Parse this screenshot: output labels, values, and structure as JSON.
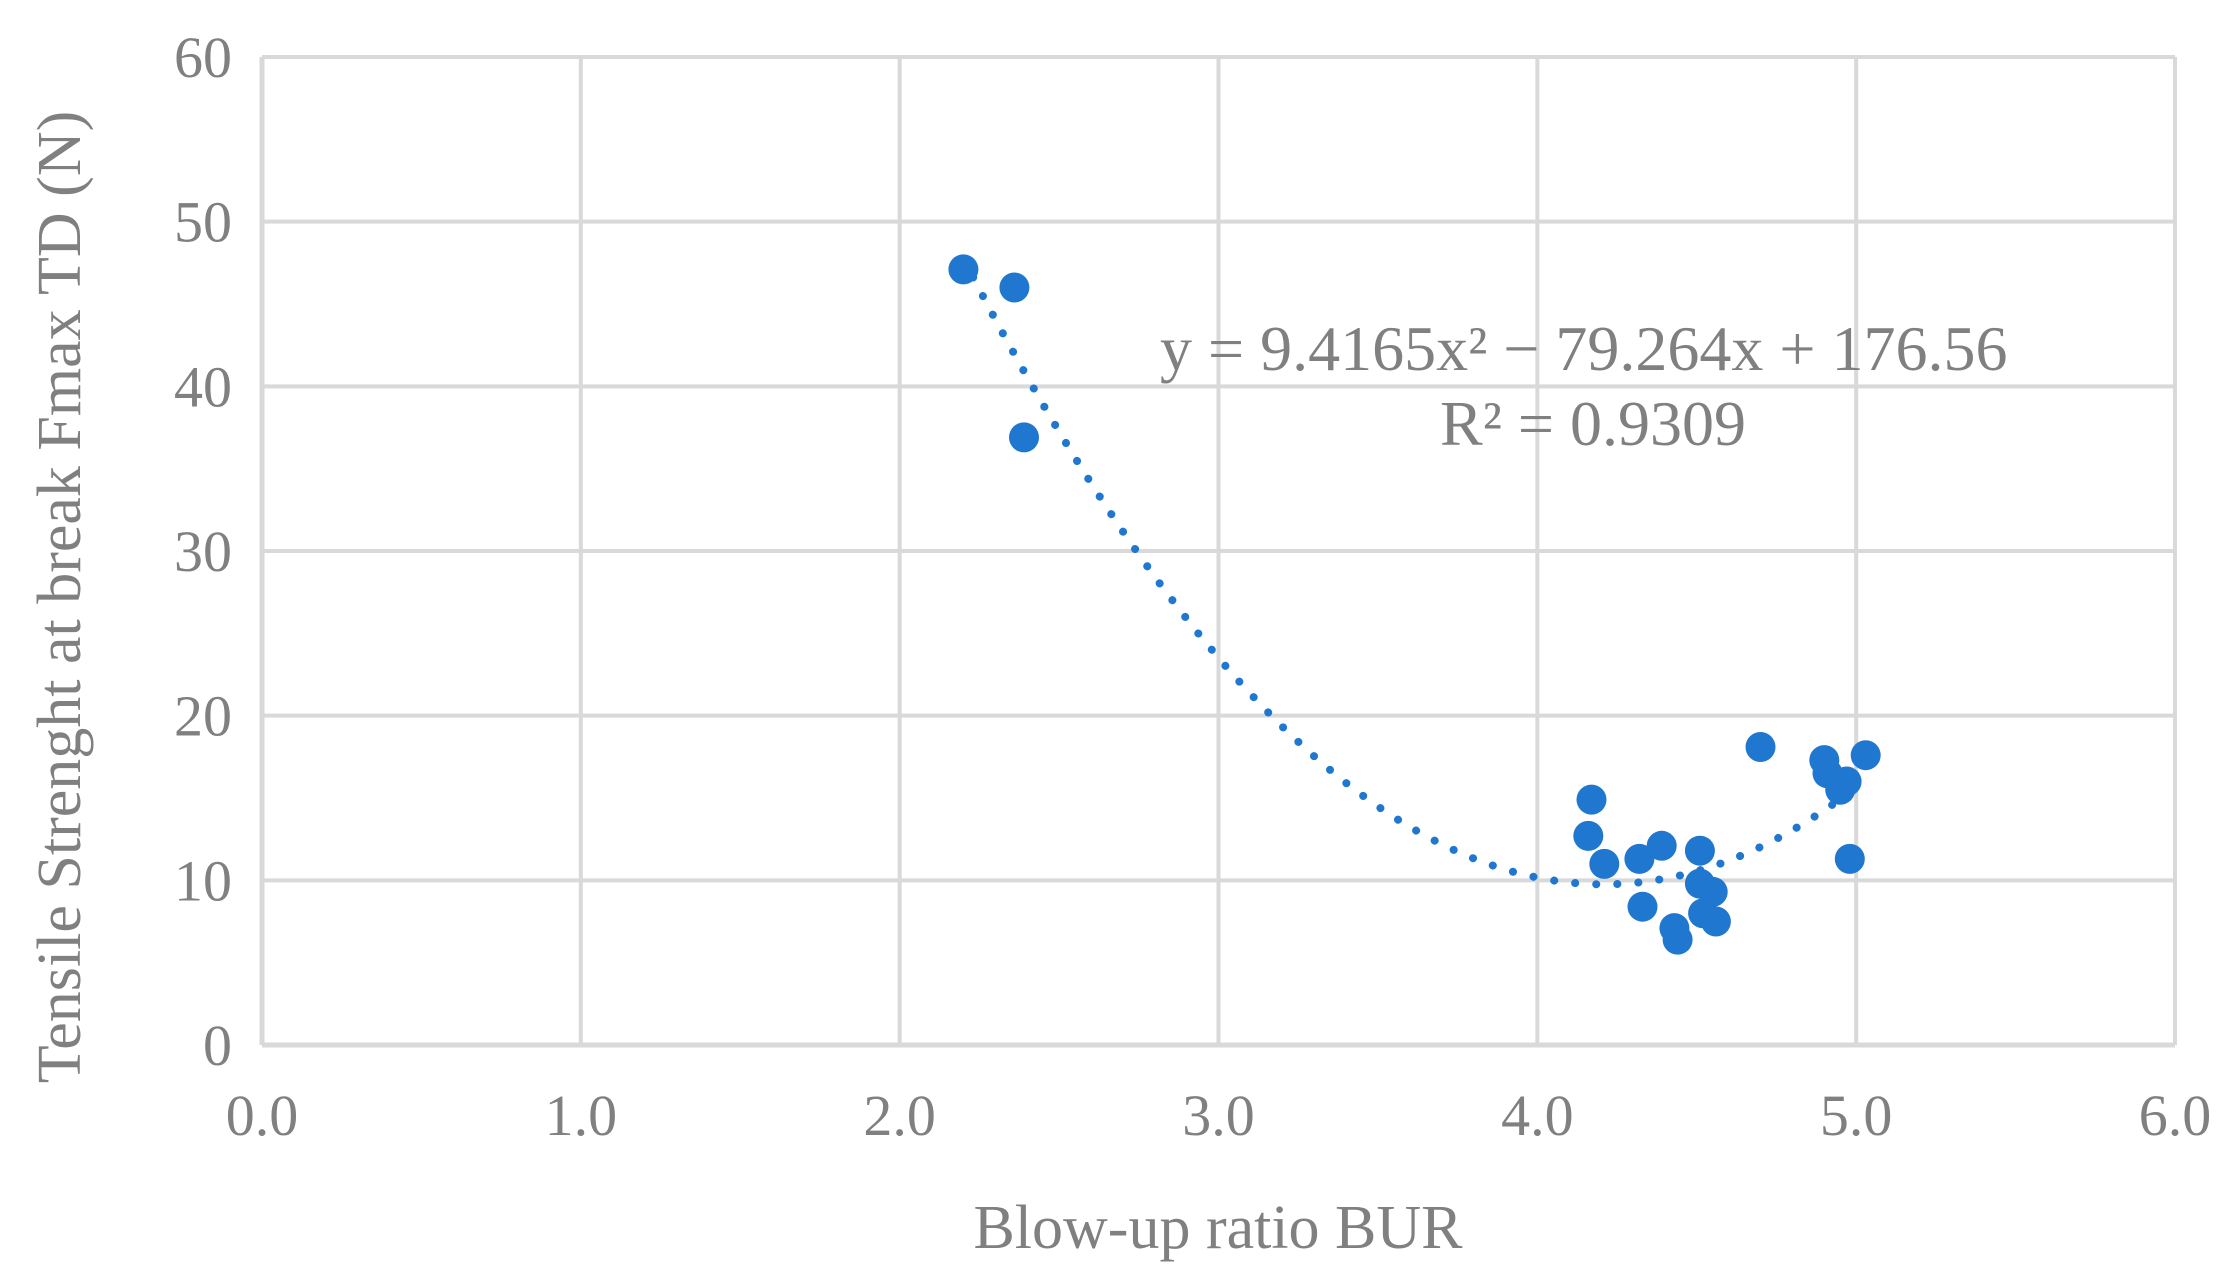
{
  "chart_data": {
    "type": "scatter",
    "xlabel": "Blow-up ratio BUR",
    "ylabel": "Tensile Strenght at break Fmax TD (N)",
    "xlim": [
      0,
      6
    ],
    "ylim": [
      0,
      60
    ],
    "xticks": [
      0,
      1,
      2,
      3,
      4,
      5,
      6
    ],
    "xtick_labels": [
      "0.0",
      "1.0",
      "2.0",
      "3.0",
      "4.0",
      "5.0",
      "6.0"
    ],
    "yticks": [
      0,
      10,
      20,
      30,
      40,
      50,
      60
    ],
    "ytick_labels": [
      "0",
      "10",
      "20",
      "30",
      "40",
      "50",
      "60"
    ],
    "grid": true,
    "marker_color": "#1f77d0",
    "grid_color": "#d9d9d9",
    "series": [
      {
        "points": [
          [
            2.2,
            47.1
          ],
          [
            2.36,
            46.0
          ],
          [
            2.39,
            36.9
          ],
          [
            4.16,
            12.7
          ],
          [
            4.17,
            14.9
          ],
          [
            4.21,
            11.0
          ],
          [
            4.32,
            11.3
          ],
          [
            4.33,
            8.4
          ],
          [
            4.39,
            12.1
          ],
          [
            4.43,
            7.1
          ],
          [
            4.44,
            6.4
          ],
          [
            4.51,
            11.8
          ],
          [
            4.51,
            9.8
          ],
          [
            4.52,
            8.0
          ],
          [
            4.55,
            9.3
          ],
          [
            4.56,
            7.5
          ],
          [
            4.7,
            18.1
          ],
          [
            4.9,
            17.3
          ],
          [
            4.91,
            16.5
          ],
          [
            4.95,
            15.5
          ],
          [
            4.97,
            16.0
          ],
          [
            4.98,
            11.3
          ],
          [
            5.03,
            17.6
          ]
        ]
      }
    ],
    "trendline": {
      "type": "polynomial",
      "coefficients": [
        9.4165,
        -79.264,
        176.56
      ],
      "x_range": [
        2.2,
        5.03
      ],
      "equation_text": "y = 9.4165x² − 79.264x + 176.56",
      "r2_text": "R² = 0.9309"
    }
  }
}
